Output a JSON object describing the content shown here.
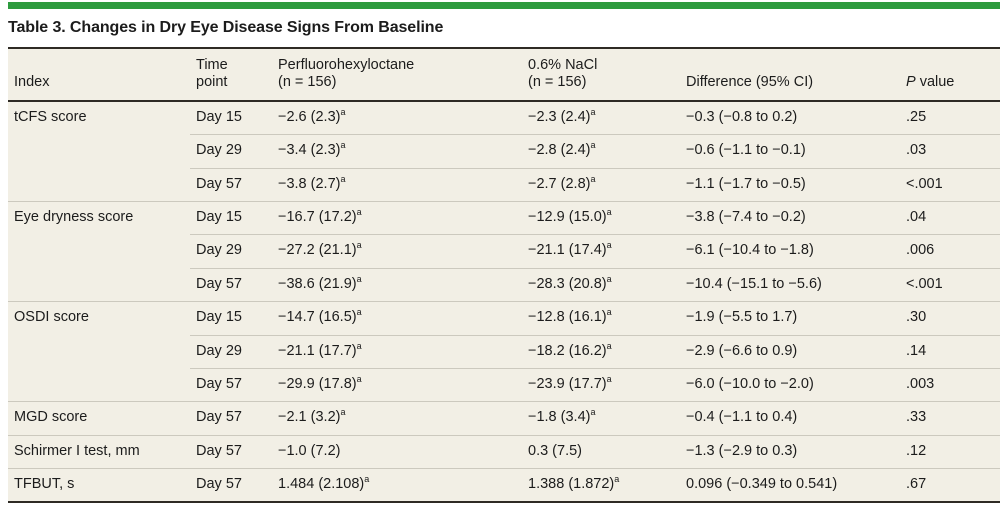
{
  "colors": {
    "accent_bar": "#2d9b3e",
    "table_background": "#f2efe5",
    "rule_dark": "#2e2a24",
    "rule_light": "#ccc9be",
    "text": "#1c1c1c"
  },
  "title": "Table 3. Changes in Dry Eye Disease Signs From Baseline",
  "table": {
    "headers": {
      "index": "Index",
      "time": "Time\npoint",
      "drug": "Perfluorohexyloctane\n(n = 156)",
      "nacl": "0.6% NaCl\n(n = 156)",
      "diff": "Difference (95% CI)",
      "p_italic": "P",
      "p_rest": " value"
    },
    "rows": [
      {
        "index": "tCFS score",
        "group_start": true,
        "time": "Day 15",
        "drug": "−2.6 (2.3)",
        "drug_sup": "a",
        "nacl": "−2.3 (2.4)",
        "nacl_sup": "a",
        "diff": "−0.3 (−0.8 to 0.2)",
        "p": ".25"
      },
      {
        "index": "",
        "group_start": false,
        "time": "Day 29",
        "drug": "−3.4 (2.3)",
        "drug_sup": "a",
        "nacl": "−2.8 (2.4)",
        "nacl_sup": "a",
        "diff": "−0.6 (−1.1 to −0.1)",
        "p": ".03"
      },
      {
        "index": "",
        "group_start": false,
        "time": "Day 57",
        "drug": "−3.8 (2.7)",
        "drug_sup": "a",
        "nacl": "−2.7 (2.8)",
        "nacl_sup": "a",
        "diff": "−1.1 (−1.7 to −0.5)",
        "p": "<.001"
      },
      {
        "index": "Eye dryness score",
        "group_start": true,
        "time": "Day 15",
        "drug": "−16.7 (17.2)",
        "drug_sup": "a",
        "nacl": "−12.9 (15.0)",
        "nacl_sup": "a",
        "diff": "−3.8 (−7.4 to −0.2)",
        "p": ".04"
      },
      {
        "index": "",
        "group_start": false,
        "time": "Day 29",
        "drug": "−27.2 (21.1)",
        "drug_sup": "a",
        "nacl": "−21.1 (17.4)",
        "nacl_sup": "a",
        "diff": "−6.1 (−10.4 to −1.8)",
        "p": ".006"
      },
      {
        "index": "",
        "group_start": false,
        "time": "Day 57",
        "drug": "−38.6 (21.9)",
        "drug_sup": "a",
        "nacl": "−28.3 (20.8)",
        "nacl_sup": "a",
        "diff": "−10.4 (−15.1 to −5.6)",
        "p": "<.001"
      },
      {
        "index": "OSDI score",
        "group_start": true,
        "time": "Day 15",
        "drug": "−14.7 (16.5)",
        "drug_sup": "a",
        "nacl": "−12.8 (16.1)",
        "nacl_sup": "a",
        "diff": "−1.9 (−5.5 to 1.7)",
        "p": ".30"
      },
      {
        "index": "",
        "group_start": false,
        "time": "Day 29",
        "drug": "−21.1 (17.7)",
        "drug_sup": "a",
        "nacl": "−18.2 (16.2)",
        "nacl_sup": "a",
        "diff": "−2.9 (−6.6 to 0.9)",
        "p": ".14"
      },
      {
        "index": "",
        "group_start": false,
        "time": "Day 57",
        "drug": "−29.9 (17.8)",
        "drug_sup": "a",
        "nacl": "−23.9 (17.7)",
        "nacl_sup": "a",
        "diff": "−6.0 (−10.0 to −2.0)",
        "p": ".003"
      },
      {
        "index": "MGD score",
        "group_start": true,
        "time": "Day 57",
        "drug": "−2.1 (3.2)",
        "drug_sup": "a",
        "nacl": "−1.8 (3.4)",
        "nacl_sup": "a",
        "diff": "−0.4 (−1.1 to 0.4)",
        "p": ".33"
      },
      {
        "index": "Schirmer I test, mm",
        "group_start": true,
        "time": "Day 57",
        "drug": "−1.0 (7.2)",
        "drug_sup": "",
        "nacl": "0.3 (7.5)",
        "nacl_sup": "",
        "diff": "−1.3 (−2.9 to 0.3)",
        "p": ".12"
      },
      {
        "index": "TFBUT, s",
        "group_start": true,
        "time": "Day 57",
        "drug": "1.484 (2.108)",
        "drug_sup": "a",
        "nacl": "1.388 (1.872)",
        "nacl_sup": "a",
        "diff": "0.096 (−0.349 to 0.541)",
        "p": ".67"
      }
    ]
  }
}
